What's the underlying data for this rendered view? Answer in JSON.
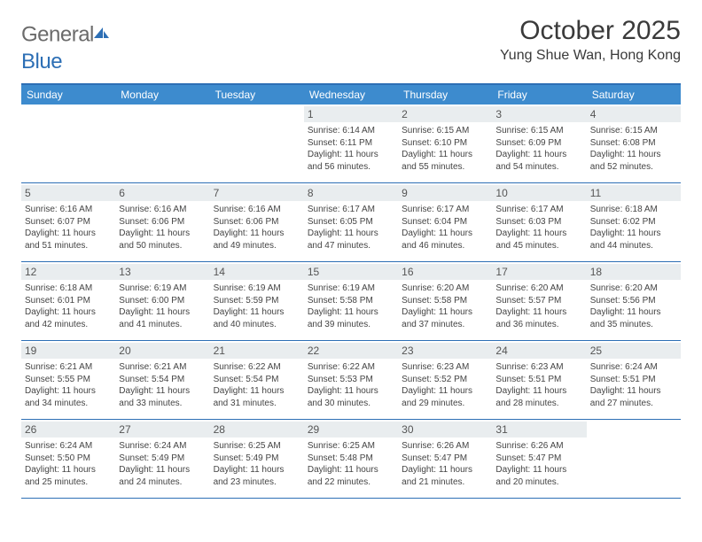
{
  "brand": {
    "part1": "General",
    "part2": "Blue"
  },
  "title": "October 2025",
  "location": "Yung Shue Wan, Hong Kong",
  "colors": {
    "header_bg": "#3d8bce",
    "border": "#2d6fb5",
    "daynum_bg": "#e9edef",
    "text": "#3a3a3a"
  },
  "day_names": [
    "Sunday",
    "Monday",
    "Tuesday",
    "Wednesday",
    "Thursday",
    "Friday",
    "Saturday"
  ],
  "weeks": [
    [
      {
        "n": "",
        "sr": "",
        "ss": "",
        "dl": ""
      },
      {
        "n": "",
        "sr": "",
        "ss": "",
        "dl": ""
      },
      {
        "n": "",
        "sr": "",
        "ss": "",
        "dl": ""
      },
      {
        "n": "1",
        "sr": "Sunrise: 6:14 AM",
        "ss": "Sunset: 6:11 PM",
        "dl": "Daylight: 11 hours and 56 minutes."
      },
      {
        "n": "2",
        "sr": "Sunrise: 6:15 AM",
        "ss": "Sunset: 6:10 PM",
        "dl": "Daylight: 11 hours and 55 minutes."
      },
      {
        "n": "3",
        "sr": "Sunrise: 6:15 AM",
        "ss": "Sunset: 6:09 PM",
        "dl": "Daylight: 11 hours and 54 minutes."
      },
      {
        "n": "4",
        "sr": "Sunrise: 6:15 AM",
        "ss": "Sunset: 6:08 PM",
        "dl": "Daylight: 11 hours and 52 minutes."
      }
    ],
    [
      {
        "n": "5",
        "sr": "Sunrise: 6:16 AM",
        "ss": "Sunset: 6:07 PM",
        "dl": "Daylight: 11 hours and 51 minutes."
      },
      {
        "n": "6",
        "sr": "Sunrise: 6:16 AM",
        "ss": "Sunset: 6:06 PM",
        "dl": "Daylight: 11 hours and 50 minutes."
      },
      {
        "n": "7",
        "sr": "Sunrise: 6:16 AM",
        "ss": "Sunset: 6:06 PM",
        "dl": "Daylight: 11 hours and 49 minutes."
      },
      {
        "n": "8",
        "sr": "Sunrise: 6:17 AM",
        "ss": "Sunset: 6:05 PM",
        "dl": "Daylight: 11 hours and 47 minutes."
      },
      {
        "n": "9",
        "sr": "Sunrise: 6:17 AM",
        "ss": "Sunset: 6:04 PM",
        "dl": "Daylight: 11 hours and 46 minutes."
      },
      {
        "n": "10",
        "sr": "Sunrise: 6:17 AM",
        "ss": "Sunset: 6:03 PM",
        "dl": "Daylight: 11 hours and 45 minutes."
      },
      {
        "n": "11",
        "sr": "Sunrise: 6:18 AM",
        "ss": "Sunset: 6:02 PM",
        "dl": "Daylight: 11 hours and 44 minutes."
      }
    ],
    [
      {
        "n": "12",
        "sr": "Sunrise: 6:18 AM",
        "ss": "Sunset: 6:01 PM",
        "dl": "Daylight: 11 hours and 42 minutes."
      },
      {
        "n": "13",
        "sr": "Sunrise: 6:19 AM",
        "ss": "Sunset: 6:00 PM",
        "dl": "Daylight: 11 hours and 41 minutes."
      },
      {
        "n": "14",
        "sr": "Sunrise: 6:19 AM",
        "ss": "Sunset: 5:59 PM",
        "dl": "Daylight: 11 hours and 40 minutes."
      },
      {
        "n": "15",
        "sr": "Sunrise: 6:19 AM",
        "ss": "Sunset: 5:58 PM",
        "dl": "Daylight: 11 hours and 39 minutes."
      },
      {
        "n": "16",
        "sr": "Sunrise: 6:20 AM",
        "ss": "Sunset: 5:58 PM",
        "dl": "Daylight: 11 hours and 37 minutes."
      },
      {
        "n": "17",
        "sr": "Sunrise: 6:20 AM",
        "ss": "Sunset: 5:57 PM",
        "dl": "Daylight: 11 hours and 36 minutes."
      },
      {
        "n": "18",
        "sr": "Sunrise: 6:20 AM",
        "ss": "Sunset: 5:56 PM",
        "dl": "Daylight: 11 hours and 35 minutes."
      }
    ],
    [
      {
        "n": "19",
        "sr": "Sunrise: 6:21 AM",
        "ss": "Sunset: 5:55 PM",
        "dl": "Daylight: 11 hours and 34 minutes."
      },
      {
        "n": "20",
        "sr": "Sunrise: 6:21 AM",
        "ss": "Sunset: 5:54 PM",
        "dl": "Daylight: 11 hours and 33 minutes."
      },
      {
        "n": "21",
        "sr": "Sunrise: 6:22 AM",
        "ss": "Sunset: 5:54 PM",
        "dl": "Daylight: 11 hours and 31 minutes."
      },
      {
        "n": "22",
        "sr": "Sunrise: 6:22 AM",
        "ss": "Sunset: 5:53 PM",
        "dl": "Daylight: 11 hours and 30 minutes."
      },
      {
        "n": "23",
        "sr": "Sunrise: 6:23 AM",
        "ss": "Sunset: 5:52 PM",
        "dl": "Daylight: 11 hours and 29 minutes."
      },
      {
        "n": "24",
        "sr": "Sunrise: 6:23 AM",
        "ss": "Sunset: 5:51 PM",
        "dl": "Daylight: 11 hours and 28 minutes."
      },
      {
        "n": "25",
        "sr": "Sunrise: 6:24 AM",
        "ss": "Sunset: 5:51 PM",
        "dl": "Daylight: 11 hours and 27 minutes."
      }
    ],
    [
      {
        "n": "26",
        "sr": "Sunrise: 6:24 AM",
        "ss": "Sunset: 5:50 PM",
        "dl": "Daylight: 11 hours and 25 minutes."
      },
      {
        "n": "27",
        "sr": "Sunrise: 6:24 AM",
        "ss": "Sunset: 5:49 PM",
        "dl": "Daylight: 11 hours and 24 minutes."
      },
      {
        "n": "28",
        "sr": "Sunrise: 6:25 AM",
        "ss": "Sunset: 5:49 PM",
        "dl": "Daylight: 11 hours and 23 minutes."
      },
      {
        "n": "29",
        "sr": "Sunrise: 6:25 AM",
        "ss": "Sunset: 5:48 PM",
        "dl": "Daylight: 11 hours and 22 minutes."
      },
      {
        "n": "30",
        "sr": "Sunrise: 6:26 AM",
        "ss": "Sunset: 5:47 PM",
        "dl": "Daylight: 11 hours and 21 minutes."
      },
      {
        "n": "31",
        "sr": "Sunrise: 6:26 AM",
        "ss": "Sunset: 5:47 PM",
        "dl": "Daylight: 11 hours and 20 minutes."
      },
      {
        "n": "",
        "sr": "",
        "ss": "",
        "dl": ""
      }
    ]
  ]
}
